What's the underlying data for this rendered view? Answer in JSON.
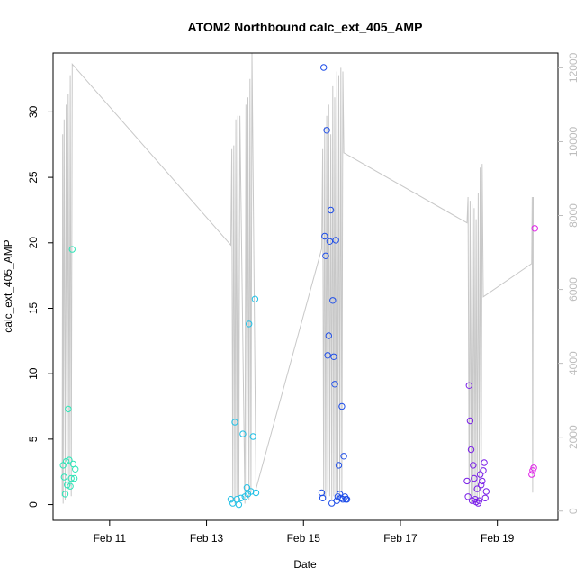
{
  "chart_data": {
    "type": "scatter",
    "title": "ATOM2 Northbound calc_ext_405_AMP",
    "xlabel": "Date",
    "ylabel": "calc_ext_405_AMP",
    "xlim": [
      "2020-02-09T20:00",
      "2020-02-20T06:00"
    ],
    "ylim": [
      -1.2,
      34.5
    ],
    "y2lim": [
      -250,
      12400
    ],
    "x_ticks": [
      {
        "date": "2020-02-11",
        "label": "Feb 11"
      },
      {
        "date": "2020-02-13",
        "label": "Feb 13"
      },
      {
        "date": "2020-02-15",
        "label": "Feb 15"
      },
      {
        "date": "2020-02-17",
        "label": "Feb 17"
      },
      {
        "date": "2020-02-19",
        "label": "Feb 19"
      }
    ],
    "y_ticks": [
      0,
      5,
      10,
      15,
      20,
      25,
      30
    ],
    "y2_ticks": [
      0,
      2000,
      4000,
      6000,
      8000,
      10000,
      12000
    ],
    "grid": false,
    "legend": "none",
    "series": [
      {
        "marker": "open-circle",
        "color": "#2ee6b8",
        "points": [
          {
            "x": "2020-02-10T01:00",
            "y": 3.0
          },
          {
            "x": "2020-02-10T01:30",
            "y": 2.1
          },
          {
            "x": "2020-02-10T02:00",
            "y": 0.8
          },
          {
            "x": "2020-02-10T02:30",
            "y": 3.3
          },
          {
            "x": "2020-02-10T03:00",
            "y": 1.5
          },
          {
            "x": "2020-02-10T03:30",
            "y": 7.3
          },
          {
            "x": "2020-02-10T04:00",
            "y": 3.4
          },
          {
            "x": "2020-02-10T04:30",
            "y": 1.4
          },
          {
            "x": "2020-02-10T05:00",
            "y": 2.0
          },
          {
            "x": "2020-02-10T05:30",
            "y": 19.5
          },
          {
            "x": "2020-02-10T06:00",
            "y": 3.1
          },
          {
            "x": "2020-02-10T06:30",
            "y": 2.0
          },
          {
            "x": "2020-02-10T07:00",
            "y": 2.7
          }
        ]
      },
      {
        "marker": "open-circle",
        "color": "#20c0e6",
        "points": [
          {
            "x": "2020-02-13T12:00",
            "y": 0.4
          },
          {
            "x": "2020-02-13T13:00",
            "y": 0.1
          },
          {
            "x": "2020-02-13T14:00",
            "y": 6.3
          },
          {
            "x": "2020-02-13T15:00",
            "y": 0.4
          },
          {
            "x": "2020-02-13T16:00",
            "y": 0.0
          },
          {
            "x": "2020-02-13T17:00",
            "y": 0.5
          },
          {
            "x": "2020-02-13T18:00",
            "y": 5.4
          },
          {
            "x": "2020-02-13T19:00",
            "y": 0.6
          },
          {
            "x": "2020-02-13T20:00",
            "y": 1.3
          },
          {
            "x": "2020-02-13T20:30",
            "y": 0.8
          },
          {
            "x": "2020-02-13T21:00",
            "y": 13.8
          },
          {
            "x": "2020-02-13T22:00",
            "y": 1.0
          },
          {
            "x": "2020-02-13T23:00",
            "y": 5.2
          },
          {
            "x": "2020-02-14T00:00",
            "y": 15.7
          },
          {
            "x": "2020-02-14T00:30",
            "y": 0.9
          }
        ]
      },
      {
        "marker": "open-circle",
        "color": "#1f4ee8",
        "points": [
          {
            "x": "2020-02-15T09:00",
            "y": 0.9
          },
          {
            "x": "2020-02-15T09:30",
            "y": 0.5
          },
          {
            "x": "2020-02-15T10:00",
            "y": 33.4
          },
          {
            "x": "2020-02-15T10:30",
            "y": 20.5
          },
          {
            "x": "2020-02-15T11:00",
            "y": 19.0
          },
          {
            "x": "2020-02-15T11:30",
            "y": 28.6
          },
          {
            "x": "2020-02-15T12:00",
            "y": 11.4
          },
          {
            "x": "2020-02-15T12:30",
            "y": 12.9
          },
          {
            "x": "2020-02-15T13:00",
            "y": 20.1
          },
          {
            "x": "2020-02-15T13:30",
            "y": 22.5
          },
          {
            "x": "2020-02-15T14:00",
            "y": 0.1
          },
          {
            "x": "2020-02-15T14:30",
            "y": 15.6
          },
          {
            "x": "2020-02-15T15:00",
            "y": 11.3
          },
          {
            "x": "2020-02-15T15:30",
            "y": 9.2
          },
          {
            "x": "2020-02-15T16:00",
            "y": 20.2
          },
          {
            "x": "2020-02-15T16:30",
            "y": 0.3
          },
          {
            "x": "2020-02-15T17:00",
            "y": 0.6
          },
          {
            "x": "2020-02-15T17:30",
            "y": 3.0
          },
          {
            "x": "2020-02-15T18:00",
            "y": 0.8
          },
          {
            "x": "2020-02-15T18:30",
            "y": 0.5
          },
          {
            "x": "2020-02-15T19:00",
            "y": 7.5
          },
          {
            "x": "2020-02-15T19:30",
            "y": 0.4
          },
          {
            "x": "2020-02-15T20:00",
            "y": 3.7
          },
          {
            "x": "2020-02-15T20:30",
            "y": 0.6
          },
          {
            "x": "2020-02-15T21:00",
            "y": 0.4
          },
          {
            "x": "2020-02-15T21:30",
            "y": 0.4
          }
        ]
      },
      {
        "marker": "open-circle",
        "color": "#7a1fe8",
        "points": [
          {
            "x": "2020-02-18T09:00",
            "y": 1.8
          },
          {
            "x": "2020-02-18T09:30",
            "y": 0.6
          },
          {
            "x": "2020-02-18T10:00",
            "y": 9.1
          },
          {
            "x": "2020-02-18T10:30",
            "y": 6.4
          },
          {
            "x": "2020-02-18T11:00",
            "y": 4.2
          },
          {
            "x": "2020-02-18T11:30",
            "y": 0.3
          },
          {
            "x": "2020-02-18T12:00",
            "y": 3.0
          },
          {
            "x": "2020-02-18T12:30",
            "y": 2.0
          },
          {
            "x": "2020-02-18T13:00",
            "y": 0.4
          },
          {
            "x": "2020-02-18T13:30",
            "y": 0.2
          },
          {
            "x": "2020-02-18T14:00",
            "y": 1.2
          },
          {
            "x": "2020-02-18T14:30",
            "y": 0.1
          },
          {
            "x": "2020-02-18T15:00",
            "y": 0.3
          },
          {
            "x": "2020-02-18T15:30",
            "y": 2.3
          },
          {
            "x": "2020-02-18T16:00",
            "y": 1.5
          },
          {
            "x": "2020-02-18T16:30",
            "y": 1.8
          },
          {
            "x": "2020-02-18T17:00",
            "y": 2.6
          },
          {
            "x": "2020-02-18T17:30",
            "y": 3.2
          },
          {
            "x": "2020-02-18T18:00",
            "y": 0.5
          },
          {
            "x": "2020-02-18T18:30",
            "y": 1.0
          }
        ]
      },
      {
        "marker": "open-circle",
        "color": "#e020e8",
        "points": [
          {
            "x": "2020-02-19T17:00",
            "y": 2.3
          },
          {
            "x": "2020-02-19T17:30",
            "y": 2.6
          },
          {
            "x": "2020-02-19T18:00",
            "y": 2.8
          },
          {
            "x": "2020-02-19T18:30",
            "y": 21.1
          }
        ]
      }
    ],
    "line_series": {
      "axis": "right",
      "color": "#c8c8c8",
      "points": [
        {
          "x": "2020-02-10T00:30",
          "y": 400
        },
        {
          "x": "2020-02-10T00:45",
          "y": 10200
        },
        {
          "x": "2020-02-10T01:00",
          "y": 200
        },
        {
          "x": "2020-02-10T01:30",
          "y": 10600
        },
        {
          "x": "2020-02-10T02:00",
          "y": 300
        },
        {
          "x": "2020-02-10T02:30",
          "y": 11000
        },
        {
          "x": "2020-02-10T03:00",
          "y": 500
        },
        {
          "x": "2020-02-10T03:30",
          "y": 11300
        },
        {
          "x": "2020-02-10T04:00",
          "y": 600
        },
        {
          "x": "2020-02-10T04:30",
          "y": 11800
        },
        {
          "x": "2020-02-10T05:00",
          "y": 400
        },
        {
          "x": "2020-02-10T05:30",
          "y": 12100
        },
        {
          "x": "2020-02-13T12:00",
          "y": 7200
        },
        {
          "x": "2020-02-13T12:30",
          "y": 9800
        },
        {
          "x": "2020-02-13T13:00",
          "y": 300
        },
        {
          "x": "2020-02-13T13:30",
          "y": 9900
        },
        {
          "x": "2020-02-13T14:00",
          "y": 200
        },
        {
          "x": "2020-02-13T14:30",
          "y": 10600
        },
        {
          "x": "2020-02-13T15:00",
          "y": 400
        },
        {
          "x": "2020-02-13T15:30",
          "y": 10700
        },
        {
          "x": "2020-02-13T16:00",
          "y": 300
        },
        {
          "x": "2020-02-13T16:30",
          "y": 10700
        },
        {
          "x": "2020-02-13T19:00",
          "y": 200
        },
        {
          "x": "2020-02-13T19:30",
          "y": 11000
        },
        {
          "x": "2020-02-13T20:00",
          "y": 400
        },
        {
          "x": "2020-02-13T20:30",
          "y": 11200
        },
        {
          "x": "2020-02-13T21:00",
          "y": 300
        },
        {
          "x": "2020-02-13T21:30",
          "y": 11700
        },
        {
          "x": "2020-02-13T22:00",
          "y": 500
        },
        {
          "x": "2020-02-13T22:30",
          "y": 12400
        },
        {
          "x": "2020-02-14T00:30",
          "y": 600
        },
        {
          "x": "2020-02-15T09:00",
          "y": 7100
        },
        {
          "x": "2020-02-15T09:30",
          "y": 9800
        },
        {
          "x": "2020-02-15T10:00",
          "y": 400
        },
        {
          "x": "2020-02-15T10:30",
          "y": 10400
        },
        {
          "x": "2020-02-15T11:00",
          "y": 300
        },
        {
          "x": "2020-02-15T11:30",
          "y": 10700
        },
        {
          "x": "2020-02-15T12:00",
          "y": 500
        },
        {
          "x": "2020-02-15T12:30",
          "y": 11000
        },
        {
          "x": "2020-02-15T13:00",
          "y": 400
        },
        {
          "x": "2020-02-15T13:30",
          "y": 10200
        },
        {
          "x": "2020-02-15T14:00",
          "y": 300
        },
        {
          "x": "2020-02-15T14:30",
          "y": 11500
        },
        {
          "x": "2020-02-15T15:00",
          "y": 400
        },
        {
          "x": "2020-02-15T15:30",
          "y": 11200
        },
        {
          "x": "2020-02-15T16:00",
          "y": 300
        },
        {
          "x": "2020-02-15T16:30",
          "y": 11900
        },
        {
          "x": "2020-02-15T17:00",
          "y": 500
        },
        {
          "x": "2020-02-15T17:30",
          "y": 11800
        },
        {
          "x": "2020-02-15T18:00",
          "y": 400
        },
        {
          "x": "2020-02-15T18:30",
          "y": 12000
        },
        {
          "x": "2020-02-15T19:00",
          "y": 500
        },
        {
          "x": "2020-02-15T19:30",
          "y": 11900
        },
        {
          "x": "2020-02-15T20:00",
          "y": 9700
        },
        {
          "x": "2020-02-18T09:00",
          "y": 7800
        },
        {
          "x": "2020-02-18T09:30",
          "y": 8500
        },
        {
          "x": "2020-02-18T10:00",
          "y": 300
        },
        {
          "x": "2020-02-18T10:30",
          "y": 8400
        },
        {
          "x": "2020-02-18T11:00",
          "y": 200
        },
        {
          "x": "2020-02-18T11:30",
          "y": 8300
        },
        {
          "x": "2020-02-18T12:00",
          "y": 400
        },
        {
          "x": "2020-02-18T12:30",
          "y": 8200
        },
        {
          "x": "2020-02-18T13:00",
          "y": 300
        },
        {
          "x": "2020-02-18T13:30",
          "y": 7900
        },
        {
          "x": "2020-02-18T14:00",
          "y": 200
        },
        {
          "x": "2020-02-18T14:30",
          "y": 8600
        },
        {
          "x": "2020-02-18T15:00",
          "y": 300
        },
        {
          "x": "2020-02-18T15:30",
          "y": 9300
        },
        {
          "x": "2020-02-18T16:00",
          "y": 400
        },
        {
          "x": "2020-02-18T16:30",
          "y": 9400
        },
        {
          "x": "2020-02-18T17:00",
          "y": 5800
        },
        {
          "x": "2020-02-19T17:00",
          "y": 6700
        },
        {
          "x": "2020-02-19T17:15",
          "y": 8500
        },
        {
          "x": "2020-02-19T17:30",
          "y": 500
        },
        {
          "x": "2020-02-19T17:45",
          "y": 8500
        }
      ]
    }
  }
}
